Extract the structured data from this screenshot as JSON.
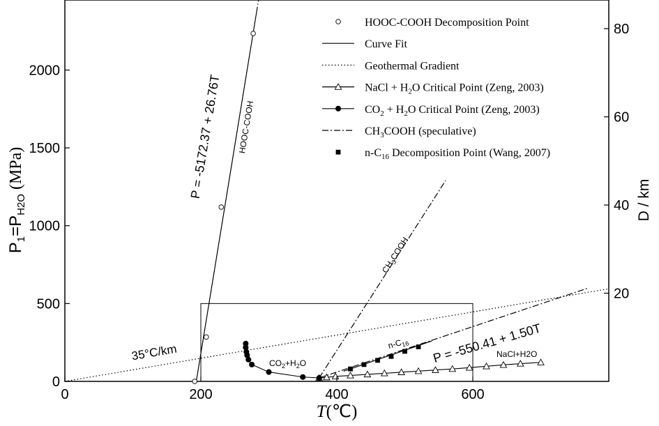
{
  "chart_data": {
    "type": "scatter",
    "title": "",
    "xlabel": {
      "main": "T",
      "unit": "(℃)"
    },
    "ylabel": {
      "p1": "P",
      "s1": "1",
      "eq": "=P",
      "s2": "H2O",
      "unit": " (MPa)"
    },
    "y2label": "D / km",
    "xlim": [
      0,
      800
    ],
    "ylim": [
      0,
      2450
    ],
    "y2lim": [
      0,
      86.5
    ],
    "x_ticks": [
      0,
      200,
      400,
      600
    ],
    "x_tick_labels": [
      "0",
      "200",
      "400",
      "600"
    ],
    "y_ticks": [
      0,
      500,
      1000,
      1500,
      2000
    ],
    "y_tick_labels": [
      "0",
      "500",
      "1000",
      "1500",
      "2000"
    ],
    "y2_ticks": [
      20,
      40,
      60,
      80
    ],
    "y2_tick_labels": [
      "20",
      "40",
      "60",
      "80"
    ],
    "legend_position": "top-right",
    "legend": [
      {
        "key": "hooc",
        "marker": "open-circle",
        "line": "none",
        "text": "HOOC-COOH Decomposition Point"
      },
      {
        "key": "fit",
        "marker": "none",
        "line": "solid",
        "text": "Curve Fit"
      },
      {
        "key": "geo",
        "marker": "none",
        "line": "dotted",
        "text": "Geothermal Gradient"
      },
      {
        "key": "nacl",
        "marker": "open-triangle",
        "line": "solid",
        "text": "NaCl + H2O Critical Point (Zeng, 2003)"
      },
      {
        "key": "co2",
        "marker": "filled-circle",
        "line": "solid",
        "text": "CO2 + H2O Critical Point (Zeng, 2003)"
      },
      {
        "key": "ch3",
        "marker": "none",
        "line": "dash-dot",
        "text": "CH3COOH (speculative)"
      },
      {
        "key": "nc16",
        "marker": "filled-square",
        "line": "none",
        "text": "n-C16 Decomposition Point (Wang, 2007)"
      }
    ],
    "legend_rich": [
      [
        {
          "t": "HOOC-COOH Decomposition Point"
        }
      ],
      [
        {
          "t": "Curve Fit"
        }
      ],
      [
        {
          "t": "Geothermal Gradient"
        }
      ],
      [
        {
          "t": "NaCl + H"
        },
        {
          "t": "2",
          "sub": true
        },
        {
          "t": "O Critical Point (Zeng, 2003)"
        }
      ],
      [
        {
          "t": "CO"
        },
        {
          "t": "2",
          "sub": true
        },
        {
          "t": " + H"
        },
        {
          "t": "2",
          "sub": true
        },
        {
          "t": "O Critical Point (Zeng, 2003)"
        }
      ],
      [
        {
          "t": "CH"
        },
        {
          "t": "3",
          "sub": true
        },
        {
          "t": "COOH (speculative)"
        }
      ],
      [
        {
          "t": "n-C"
        },
        {
          "t": "16",
          "sub": true
        },
        {
          "t": " Decomposition Point (Wang, 2007)"
        }
      ]
    ],
    "series": [
      {
        "key": "hooc",
        "x": [
          191,
          208,
          230,
          277
        ],
        "y": [
          0,
          285,
          1120,
          2235
        ]
      },
      {
        "key": "fit_hooc",
        "x": [
          193.3,
          283
        ],
        "y": [
          0,
          2400
        ]
      },
      {
        "key": "geo",
        "x": [
          0,
          800
        ],
        "y": [
          0,
          595
        ]
      },
      {
        "key": "nacl",
        "x": [
          374,
          385,
          398,
          420,
          445,
          470,
          495,
          520,
          545,
          570,
          595,
          620,
          645,
          670,
          700
        ],
        "y": [
          22,
          26,
          32,
          38,
          45,
          52,
          59,
          66,
          73,
          80,
          88,
          97,
          106,
          114,
          122
        ]
      },
      {
        "key": "co2",
        "x": [
          266,
          266,
          267,
          268,
          270,
          275,
          300,
          350,
          374
        ],
        "y": [
          243,
          218,
          190,
          168,
          140,
          108,
          60,
          28,
          22
        ]
      },
      {
        "key": "ch3_a",
        "x": [
          374,
          560
        ],
        "y": [
          22,
          1290
        ]
      },
      {
        "key": "ch3_b",
        "x": [
          374,
          770
        ],
        "y": [
          22,
          600
        ]
      },
      {
        "key": "nc16",
        "x": [
          420,
          440,
          460,
          480,
          500,
          520
        ],
        "y": [
          80,
          108,
          135,
          160,
          193,
          222
        ]
      },
      {
        "key": "fit_nc16",
        "x": [
          410,
          540
        ],
        "y": [
          65,
          260
        ]
      }
    ],
    "inset_box": {
      "x": [
        200,
        600
      ],
      "y": [
        0,
        500
      ]
    },
    "annotations": {
      "eq1": "P = -5172.37 + 26.76T",
      "hooc_label": "HOOC-COOH",
      "ch3_label": {
        "a": "CH",
        "sub": "3",
        "b": "COOH"
      },
      "grad_label": "35°C/km",
      "eq2": "P = -550.41 + 1.50T",
      "nc16_label": {
        "a": "n-C",
        "sub": "16"
      },
      "co2_label": {
        "a": "CO",
        "sub": "2",
        "b": "+H",
        "sub2": "2",
        "c": "O"
      },
      "nacl_label": "NaCl+H2O"
    }
  }
}
